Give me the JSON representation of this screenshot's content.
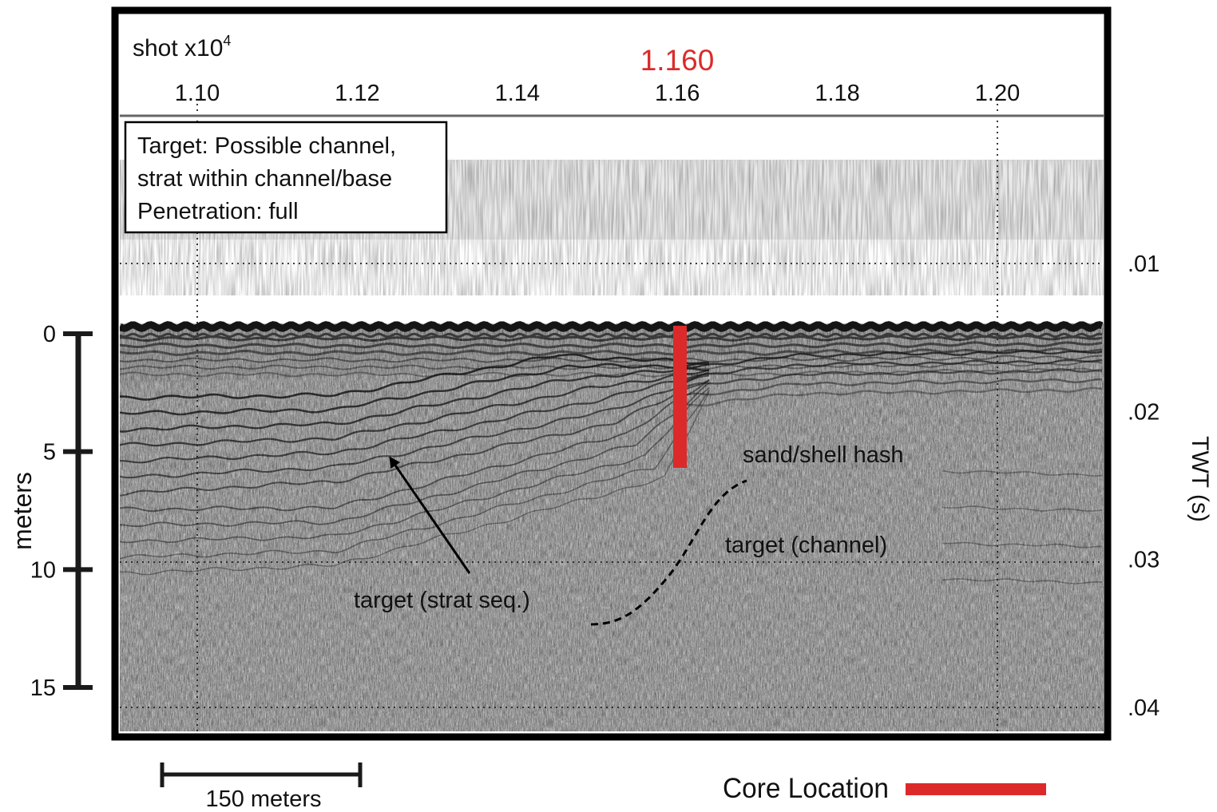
{
  "header": {
    "shot_label": "shot x10",
    "shot_exponent": "4",
    "core_shot": "1.160"
  },
  "top_ticks": [
    {
      "value": 1.1,
      "label": "1.10"
    },
    {
      "value": 1.12,
      "label": "1.12"
    },
    {
      "value": 1.14,
      "label": "1.14"
    },
    {
      "value": 1.16,
      "label": "1.16"
    },
    {
      "value": 1.18,
      "label": "1.18"
    },
    {
      "value": 1.2,
      "label": "1.20"
    }
  ],
  "infobox": {
    "line1": "Target: Possible channel,",
    "line2": "strat within channel/base",
    "line3": "Penetration: full"
  },
  "twt_axis": {
    "title": "TWT (s)",
    "ticks": [
      {
        "value": 0.01,
        "label": ".01"
      },
      {
        "value": 0.02,
        "label": ".02"
      },
      {
        "value": 0.03,
        "label": ".03"
      },
      {
        "value": 0.04,
        "label": ".04"
      }
    ]
  },
  "depth_axis": {
    "title": "meters",
    "ticks": [
      {
        "value": 0,
        "label": "0"
      },
      {
        "value": 5,
        "label": "5"
      },
      {
        "value": 10,
        "label": "10"
      },
      {
        "value": 15,
        "label": "15"
      }
    ]
  },
  "annotations": {
    "strat": "target (strat seq.)",
    "channel": "target (channel)",
    "sand": "sand/shell hash"
  },
  "scale_bar": {
    "label": "150 meters"
  },
  "legend": {
    "core_label": "Core Location"
  },
  "colors": {
    "core": "#dc2a2a",
    "frame": "#000000",
    "seafloor": "#151515",
    "reflector": "#2a2a2a"
  }
}
